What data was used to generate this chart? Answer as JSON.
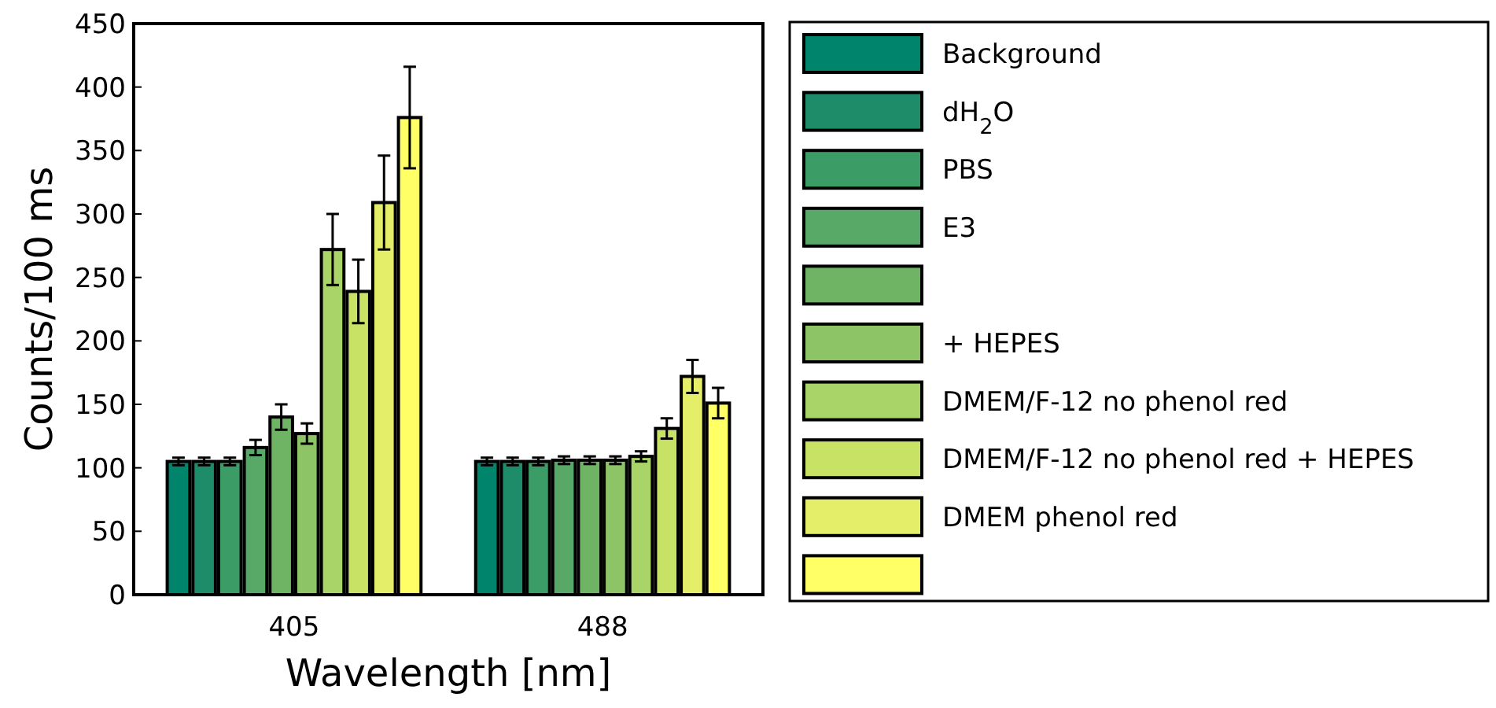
{
  "chart_data": {
    "type": "bar",
    "xlabel": "Wavelength [nm]",
    "ylabel": "Counts/100 ms",
    "categories": [
      "405",
      "488"
    ],
    "ylim": [
      0,
      450
    ],
    "yticks": [
      0,
      50,
      100,
      150,
      200,
      250,
      300,
      350,
      400,
      450
    ],
    "legend": "right",
    "series": [
      {
        "name": "Background",
        "color": "#00846b",
        "values": [
          105,
          105
        ],
        "errors": [
          3,
          3
        ]
      },
      {
        "name": "dH$_{2}$O",
        "color": "#1e8c68",
        "values": [
          105,
          105
        ],
        "errors": [
          3,
          3
        ]
      },
      {
        "name": "PBS",
        "color": "#3c9c66",
        "values": [
          105,
          105
        ],
        "errors": [
          3,
          3
        ]
      },
      {
        "name": "E3",
        "color": "#58a868",
        "values": [
          116,
          106
        ],
        "errors": [
          6,
          3
        ]
      },
      {
        "color": "#6fb464",
        "values": [
          140,
          106
        ],
        "errors": [
          10,
          3
        ]
      },
      {
        "name": "+ HEPES",
        "color": "#8cc466",
        "values": [
          127,
          106
        ],
        "errors": [
          8,
          3
        ]
      },
      {
        "name": "DMEM/F-12 no phenol red",
        "color": "#a9d468",
        "values": [
          272,
          109
        ],
        "errors": [
          28,
          4
        ]
      },
      {
        "name": "DMEM/F-12 no phenol red + HEPES",
        "color": "#c8e266",
        "values": [
          239,
          131
        ],
        "errors": [
          25,
          8
        ]
      },
      {
        "name": "DMEM phenol red",
        "color": "#e4ee68",
        "values": [
          309,
          172
        ],
        "errors": [
          37,
          13
        ]
      },
      {
        "color": "#ffff66",
        "values": [
          376,
          151
        ],
        "errors": [
          40,
          12
        ]
      }
    ]
  }
}
